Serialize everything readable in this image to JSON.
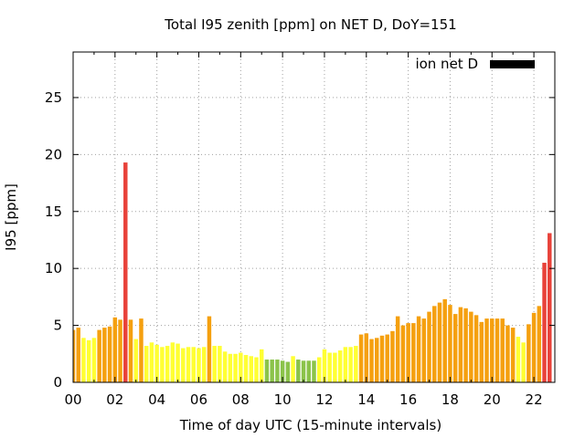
{
  "chart_data": {
    "type": "bar",
    "title": "Total I95 zenith [ppm] on NET D, DoY=151",
    "xlabel": "Time of day UTC (15-minute intervals)",
    "ylabel": "I95 [ppm]",
    "legend": {
      "label": "ion net D",
      "placement": "top-right",
      "swatch_color": "#000000"
    },
    "xlim_hours": [
      0,
      23
    ],
    "ylim": [
      0,
      29
    ],
    "x_tick_labels": [
      "00",
      "02",
      "04",
      "06",
      "08",
      "10",
      "12",
      "14",
      "16",
      "18",
      "20",
      "22"
    ],
    "y_tick_labels": [
      "0",
      "5",
      "10",
      "15",
      "20",
      "25"
    ],
    "grid": true,
    "interval_hours": 0.25,
    "colors": {
      "green": "#8bc34a",
      "yellow": "#ffff33",
      "orange": "#f5a00f",
      "red": "#e8423a"
    },
    "values": [
      4.6,
      4.8,
      3.9,
      3.7,
      3.9,
      4.6,
      4.8,
      4.9,
      5.7,
      5.5,
      19.3,
      5.5,
      3.8,
      5.6,
      3.2,
      3.5,
      3.3,
      3.1,
      3.2,
      3.5,
      3.4,
      3.0,
      3.1,
      3.1,
      3.0,
      3.1,
      5.8,
      3.2,
      3.2,
      2.7,
      2.5,
      2.5,
      2.6,
      2.4,
      2.3,
      2.2,
      2.9,
      2.0,
      2.0,
      2.0,
      1.9,
      1.8,
      2.3,
      2.0,
      1.9,
      1.9,
      1.9,
      2.2,
      2.9,
      2.6,
      2.6,
      2.8,
      3.1,
      3.1,
      3.2,
      4.2,
      4.3,
      3.8,
      3.9,
      4.1,
      4.2,
      4.5,
      5.8,
      5.0,
      5.2,
      5.2,
      5.8,
      5.6,
      6.2,
      6.7,
      7.0,
      7.3,
      6.8,
      6.0,
      6.6,
      6.5,
      6.2,
      5.9,
      5.3,
      5.6,
      5.6,
      5.6,
      5.6,
      5.0,
      4.8,
      4.0,
      3.5,
      5.1,
      6.1,
      6.7,
      10.5,
      13.1
    ],
    "bar_colors": [
      "orange",
      "orange",
      "yellow",
      "yellow",
      "yellow",
      "orange",
      "orange",
      "orange",
      "orange",
      "orange",
      "red",
      "orange",
      "yellow",
      "orange",
      "yellow",
      "yellow",
      "yellow",
      "yellow",
      "yellow",
      "yellow",
      "yellow",
      "yellow",
      "yellow",
      "yellow",
      "yellow",
      "yellow",
      "orange",
      "yellow",
      "yellow",
      "yellow",
      "yellow",
      "yellow",
      "yellow",
      "yellow",
      "yellow",
      "yellow",
      "yellow",
      "green",
      "green",
      "green",
      "green",
      "green",
      "yellow",
      "green",
      "green",
      "green",
      "green",
      "yellow",
      "yellow",
      "yellow",
      "yellow",
      "yellow",
      "yellow",
      "yellow",
      "yellow",
      "orange",
      "orange",
      "orange",
      "orange",
      "orange",
      "orange",
      "orange",
      "orange",
      "orange",
      "orange",
      "orange",
      "orange",
      "orange",
      "orange",
      "orange",
      "orange",
      "orange",
      "orange",
      "orange",
      "orange",
      "orange",
      "orange",
      "orange",
      "orange",
      "orange",
      "orange",
      "orange",
      "orange",
      "orange",
      "orange",
      "yellow",
      "yellow",
      "orange",
      "orange",
      "orange",
      "red",
      "red"
    ]
  }
}
